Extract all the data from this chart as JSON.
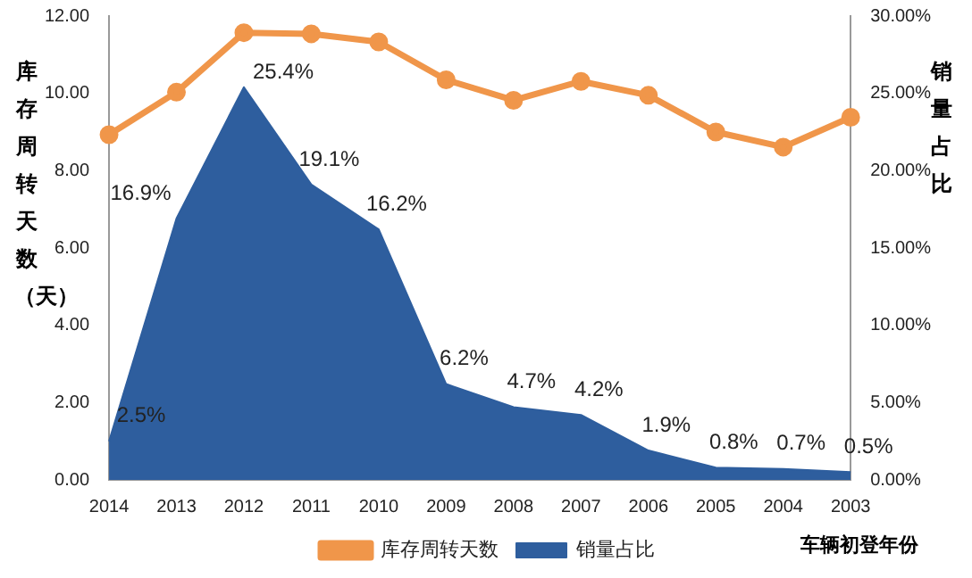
{
  "chart_data": {
    "type": "line",
    "categories": [
      "2014",
      "2013",
      "2012",
      "2011",
      "2010",
      "2009",
      "2008",
      "2007",
      "2006",
      "2005",
      "2004",
      "2003"
    ],
    "series": [
      {
        "name": "销量占比",
        "type": "area",
        "axis": "y2",
        "color": "#2e5e9e",
        "values": [
          2.5,
          16.9,
          25.4,
          19.1,
          16.2,
          6.2,
          4.7,
          4.2,
          1.9,
          0.8,
          0.7,
          0.5
        ],
        "value_labels": [
          "2.5%",
          "16.9%",
          "25.4%",
          "19.1%",
          "16.2%",
          "6.2%",
          "4.7%",
          "4.2%",
          "1.9%",
          "0.8%",
          "0.7%",
          "0.5%"
        ]
      },
      {
        "name": "库存周转天数",
        "marker": "circle",
        "color": "#f0964a",
        "values": [
          8.93,
          10.03,
          11.57,
          11.54,
          11.33,
          10.35,
          9.82,
          10.31,
          9.95,
          9.0,
          8.61,
          9.38
        ]
      }
    ],
    "ylabel": "库存周转天数（天）",
    "y2label": "销量占比",
    "xlabel": "车辆初登年份",
    "ylim": [
      0,
      12
    ],
    "yticks": [
      {
        "value": 0,
        "label": "0.00"
      },
      {
        "value": 2,
        "label": "2.00"
      },
      {
        "value": 4,
        "label": "4.00"
      },
      {
        "value": 6,
        "label": "6.00"
      },
      {
        "value": 8,
        "label": "8.00"
      },
      {
        "value": 10,
        "label": "10.00"
      },
      {
        "value": 12,
        "label": "12.00"
      }
    ],
    "y2lim": [
      0,
      30
    ],
    "y2ticks": [
      {
        "value": 0,
        "label": "0.00%"
      },
      {
        "value": 5,
        "label": "5.00%"
      },
      {
        "value": 10,
        "label": "10.00%"
      },
      {
        "value": 15,
        "label": "15.00%"
      },
      {
        "value": 20,
        "label": "20.00%"
      },
      {
        "value": 25,
        "label": "25.00%"
      },
      {
        "value": 30,
        "label": "30.00%"
      }
    ],
    "grid": false,
    "legend": "bottom"
  }
}
